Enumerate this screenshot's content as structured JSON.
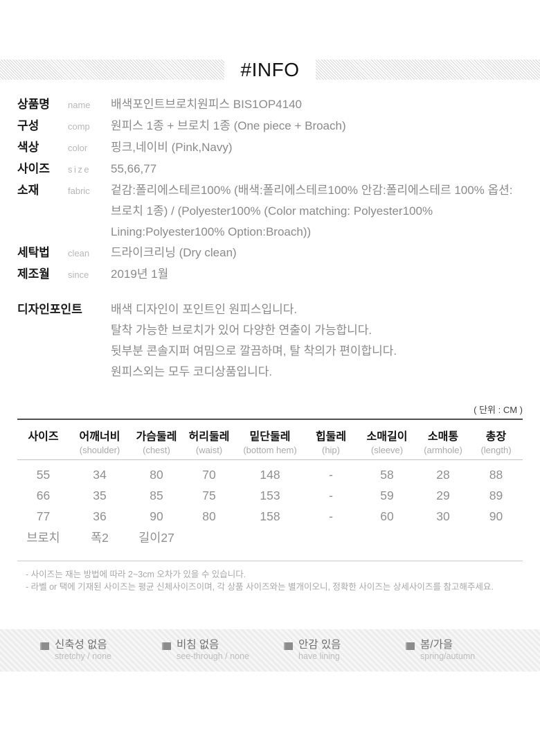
{
  "header": {
    "title": "#INFO"
  },
  "colors": {
    "label_text": "#1a1a1a",
    "value_text": "#8a8a8a",
    "sublabel_text": "#b7b7b7",
    "table_top_line": "#4f4f4f",
    "stripe_gray": "#d6d6d6",
    "bar_background": "#efefef"
  },
  "spec": {
    "rows": [
      {
        "label_ko": "상품명",
        "label_en": "name",
        "value": "배색포인트브로치원피스  BIS1OP4140"
      },
      {
        "label_ko": "구성",
        "label_en": "comp",
        "value": "원피스 1종 + 브로치 1종 (One piece + Broach)"
      },
      {
        "label_ko": "색상",
        "label_en": "color",
        "value": "핑크,네이비 (Pink,Navy)"
      },
      {
        "label_ko": "사이즈",
        "label_en": "size",
        "value": "55,66,77"
      },
      {
        "label_ko": "소재",
        "label_en": "fabric",
        "value": "겉감:폴리에스테르100% (배색:폴리에스테르100% 안감:폴리에스테르 100% 옵션:브로치 1종) / (Polyester100% (Color matching: Polyester100% Lining:Polyester100% Option:Broach))"
      },
      {
        "label_ko": "세탁법",
        "label_en": "clean",
        "value": "드라이크리닝 (Dry clean)"
      },
      {
        "label_ko": "제조월",
        "label_en": "since",
        "value": "2019년 1월"
      }
    ]
  },
  "design_point": {
    "label": "디자인포인트",
    "lines": [
      "배색 디자인이 포인트인 원피스입니다.",
      "탈착 가능한 브로치가 있어 다양한 연출이 가능합니다.",
      "뒷부분 콘솔지퍼 여밈으로 깔끔하며, 탈 착의가 편이합니다.",
      "원피스외는 모두 코디상품입니다."
    ]
  },
  "size_table": {
    "unit_note": "( 단위 : CM )",
    "columns": [
      {
        "ko": "사이즈",
        "en": ""
      },
      {
        "ko": "어깨너비",
        "en": "(shoulder)"
      },
      {
        "ko": "가슴둘레",
        "en": "(chest)"
      },
      {
        "ko": "허리둘레",
        "en": "(waist)"
      },
      {
        "ko": "밑단둘레",
        "en": "(bottom hem)"
      },
      {
        "ko": "힙둘레",
        "en": "(hip)"
      },
      {
        "ko": "소매길이",
        "en": "(sleeve)"
      },
      {
        "ko": "소매통",
        "en": "(armhole)"
      },
      {
        "ko": "총장",
        "en": "(length)"
      }
    ],
    "rows": [
      [
        "55",
        "34",
        "80",
        "70",
        "148",
        "-",
        "58",
        "28",
        "88"
      ],
      [
        "66",
        "35",
        "85",
        "75",
        "153",
        "-",
        "59",
        "29",
        "89"
      ],
      [
        "77",
        "36",
        "90",
        "80",
        "158",
        "-",
        "60",
        "30",
        "90"
      ],
      [
        "브로치",
        "폭2",
        "길이27",
        "",
        "",
        "",
        "",
        "",
        ""
      ]
    ]
  },
  "notes": [
    "- 사이즈는 재는 방법에 따라 2~3cm 오차가 있을 수 있습니다.",
    "- 라벨 or 택에 기재된 사이즈는 평균 신체사이즈이며, 각 상품 사이즈와는 별개이오니, 정확한 사이즈는 상세사이즈를 참고해주세요."
  ],
  "attributes": {
    "bullet_icon": "square",
    "items": [
      {
        "ko": "신축성 없음",
        "en": "stretchy / none"
      },
      {
        "ko": "비침 없음",
        "en": "see-through / none"
      },
      {
        "ko": "안감 있음",
        "en": "have lining"
      },
      {
        "ko": "봄/가을",
        "en": "spring/autumn"
      }
    ]
  }
}
